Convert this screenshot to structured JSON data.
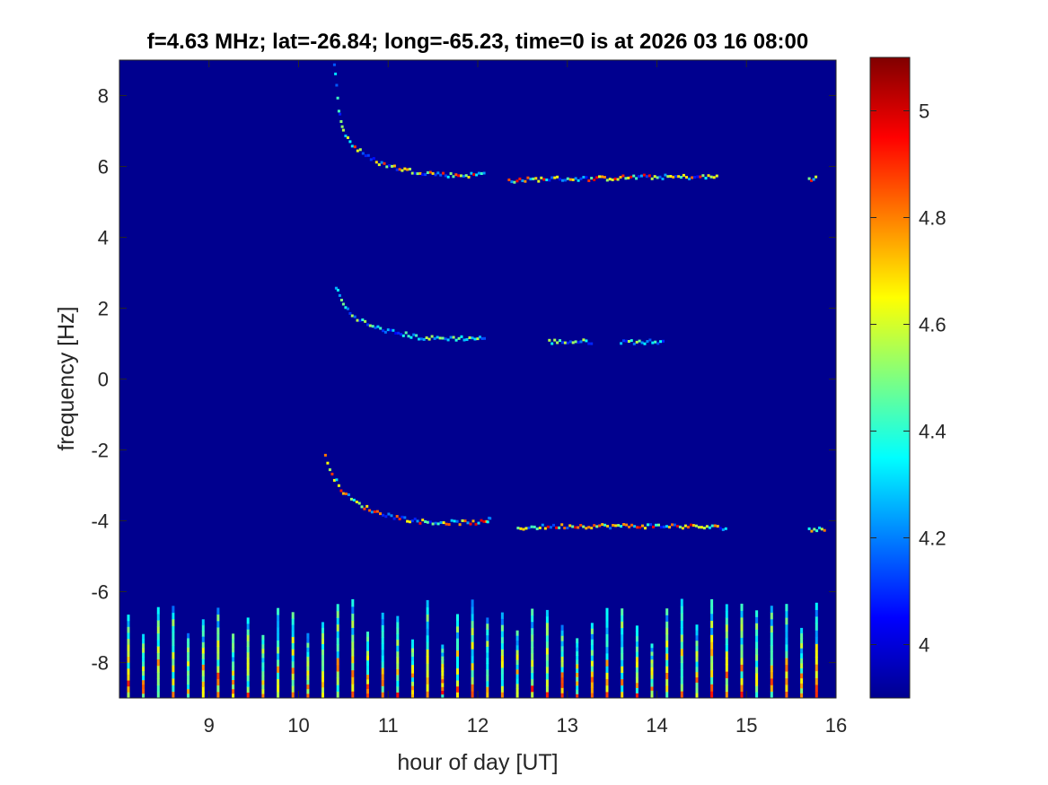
{
  "chart_data": {
    "type": "heatmap",
    "title": "f=4.63 MHz;  lat=-26.84; long=-65.23, time=0 is at 2026 03 16 08:00",
    "xlabel": "hour of day [UT]",
    "ylabel": "frequency [Hz]",
    "xlim": [
      8.0,
      16.0
    ],
    "ylim": [
      -9.0,
      9.0
    ],
    "xticks": [
      9,
      10,
      11,
      12,
      13,
      14,
      15,
      16
    ],
    "yticks": [
      -8,
      -6,
      -4,
      -2,
      0,
      2,
      4,
      6,
      8
    ],
    "colorbar": {
      "colormap": "jet",
      "clim": [
        3.9,
        5.1
      ],
      "ticks": [
        4.0,
        4.2,
        4.4,
        4.6,
        4.8,
        5.0
      ],
      "tick_labels": [
        "4",
        "4.2",
        "4.4",
        "4.6",
        "4.8",
        "5"
      ]
    },
    "background_value": 3.9,
    "traces": [
      {
        "segments": [
          [
            [
              10.4,
              8.9
            ],
            [
              10.45,
              7.6
            ],
            [
              10.5,
              7.0
            ],
            [
              10.6,
              6.6
            ],
            [
              10.75,
              6.3
            ],
            [
              10.9,
              6.1
            ],
            [
              11.1,
              5.95
            ],
            [
              11.3,
              5.85
            ],
            [
              11.5,
              5.8
            ],
            [
              11.7,
              5.75
            ],
            [
              11.9,
              5.75
            ],
            [
              12.1,
              5.8
            ]
          ],
          [
            [
              12.35,
              5.6
            ],
            [
              12.8,
              5.65
            ],
            [
              13.3,
              5.65
            ],
            [
              13.8,
              5.7
            ],
            [
              14.3,
              5.7
            ],
            [
              14.7,
              5.7
            ]
          ],
          [
            [
              15.7,
              5.65
            ],
            [
              15.8,
              5.65
            ]
          ]
        ],
        "peak_value": 5.0
      },
      {
        "segments": [
          [
            [
              10.42,
              2.6
            ],
            [
              10.5,
              2.1
            ],
            [
              10.6,
              1.8
            ],
            [
              10.8,
              1.5
            ],
            [
              11.0,
              1.35
            ],
            [
              11.2,
              1.25
            ],
            [
              11.4,
              1.15
            ],
            [
              11.7,
              1.15
            ],
            [
              12.0,
              1.15
            ],
            [
              12.1,
              1.15
            ]
          ],
          [
            [
              12.8,
              1.05
            ],
            [
              13.3,
              1.05
            ]
          ],
          [
            [
              13.6,
              1.05
            ],
            [
              14.1,
              1.05
            ]
          ]
        ],
        "peak_value": 4.6
      },
      {
        "segments": [
          [
            [
              10.3,
              -2.2
            ],
            [
              10.4,
              -2.8
            ],
            [
              10.5,
              -3.2
            ],
            [
              10.65,
              -3.5
            ],
            [
              10.85,
              -3.75
            ],
            [
              11.1,
              -3.9
            ],
            [
              11.3,
              -4.0
            ],
            [
              11.5,
              -4.05
            ],
            [
              11.8,
              -4.05
            ],
            [
              12.1,
              -4.05
            ],
            [
              12.15,
              -3.9
            ]
          ],
          [
            [
              12.45,
              -4.2
            ],
            [
              13.0,
              -4.15
            ],
            [
              13.6,
              -4.15
            ],
            [
              14.2,
              -4.15
            ],
            [
              14.8,
              -4.2
            ]
          ],
          [
            [
              15.7,
              -4.25
            ],
            [
              15.9,
              -4.25
            ]
          ]
        ],
        "peak_value": 5.0
      }
    ],
    "vertical_bursts": {
      "x_start": 8.1,
      "x_end": 15.9,
      "spacing": 0.167,
      "y_bottom": -9.0,
      "y_top_range": [
        -7.5,
        -6.2
      ],
      "value_range": [
        4.0,
        5.0
      ]
    }
  }
}
